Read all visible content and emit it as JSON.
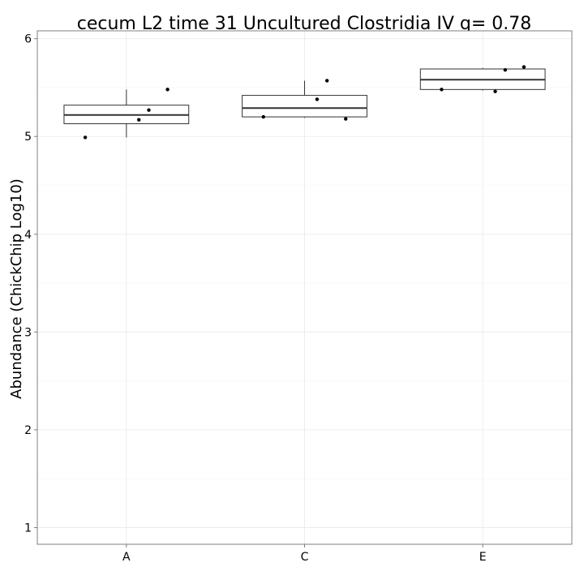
{
  "chart_data": {
    "type": "box",
    "title": "cecum L2 time 31 Uncultured Clostridia IV q= 0.78",
    "xlabel": "",
    "ylabel": "Abundance (ChickChip Log10)",
    "categories": [
      "A",
      "C",
      "E"
    ],
    "ylim": [
      0.83,
      6.08
    ],
    "yticks": [
      1,
      2,
      3,
      4,
      5,
      6
    ],
    "grid": true,
    "legend": "none",
    "boxes": [
      {
        "category": "A",
        "min": 4.99,
        "q1": 5.13,
        "median": 5.22,
        "q3": 5.32,
        "max": 5.48
      },
      {
        "category": "C",
        "min": 5.19,
        "q1": 5.2,
        "median": 5.29,
        "q3": 5.42,
        "max": 5.57
      },
      {
        "category": "E",
        "min": 5.47,
        "q1": 5.48,
        "median": 5.58,
        "q3": 5.69,
        "max": 5.7
      }
    ],
    "points": [
      {
        "category": "A",
        "values": [
          4.99,
          5.17,
          5.27,
          5.48
        ]
      },
      {
        "category": "C",
        "values": [
          5.2,
          5.38,
          5.57,
          5.18
        ]
      },
      {
        "category": "E",
        "values": [
          5.48,
          5.46,
          5.68,
          5.71
        ]
      }
    ],
    "colors": {
      "box": "#333333",
      "point": "#000000",
      "grid": "#ebebeb",
      "panel_border": "#7f7f7f"
    }
  }
}
